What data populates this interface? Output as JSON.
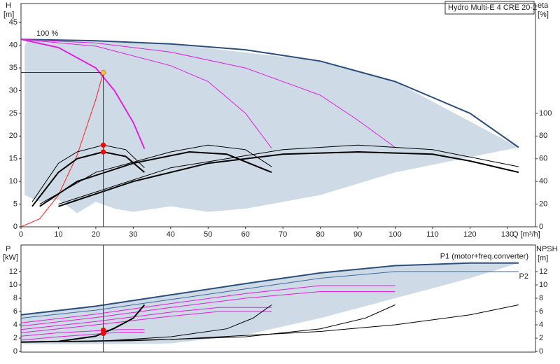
{
  "chart_data": [
    {
      "type": "line",
      "title": "Hydro Multi-E 4 CRE 20-2",
      "ylabel": "H",
      "yunit": "[m]",
      "y2label": "eta",
      "y2unit": "[%]",
      "xlabel": "Q [m³/h]",
      "annotations": [
        "100 %"
      ],
      "xlim": [
        0,
        137.5
      ],
      "ylim": [
        0,
        49.2
      ],
      "y2lim": [
        0,
        196.8
      ],
      "xticks": [
        0,
        10,
        20,
        30,
        40,
        50,
        60,
        70,
        80,
        90,
        100,
        110,
        120,
        130
      ],
      "yticks": [
        0,
        5,
        10,
        15,
        20,
        25,
        30,
        35,
        40,
        45
      ],
      "y2ticks": [
        0,
        20,
        40,
        60,
        80,
        100
      ],
      "series": [
        {
          "style": "area",
          "color": "#c9d6e3",
          "x": [
            1,
            2,
            10,
            40,
            80,
            100,
            133,
            100,
            80,
            60,
            50,
            40,
            30,
            25,
            20,
            15,
            10,
            5,
            1
          ],
          "values": [
            40,
            41.3,
            41.2,
            40.3,
            36.5,
            32,
            17.5,
            12,
            7,
            4,
            3.3,
            4.5,
            3.3,
            4,
            5.5,
            3,
            6,
            5.5,
            7
          ]
        },
        {
          "color": "#2b4f7a",
          "weight": "bold",
          "x": [
            0,
            20,
            40,
            60,
            80,
            100,
            120,
            133
          ],
          "values": [
            41.3,
            41,
            40.3,
            39,
            36.5,
            32,
            25,
            17.5
          ]
        },
        {
          "color": "#e020e0",
          "weight": "bold",
          "x": [
            0,
            10,
            20,
            25,
            30,
            33
          ],
          "values": [
            41.3,
            39.5,
            35,
            30,
            23,
            17.2
          ]
        },
        {
          "color": "#e020e0",
          "weight": "normal",
          "x": [
            0,
            20,
            40,
            50,
            60,
            67
          ],
          "values": [
            41.3,
            39.8,
            35.5,
            32,
            25,
            17.3
          ]
        },
        {
          "color": "#e020e0",
          "weight": "normal",
          "x": [
            0,
            20,
            40,
            60,
            80,
            90,
            100
          ],
          "values": [
            41.3,
            40.5,
            38.5,
            35,
            29,
            23.5,
            17.5
          ]
        },
        {
          "color": "#ff2020",
          "weight": "normal",
          "x": [
            0,
            5,
            10,
            15,
            20,
            22
          ],
          "values": [
            0,
            1.76,
            7,
            15.8,
            28.1,
            34
          ]
        },
        {
          "color": "#000000",
          "weight": "bold",
          "axis": "y2",
          "x": [
            3,
            10,
            15,
            22,
            28,
            33
          ],
          "values": [
            18,
            48,
            60,
            66,
            62,
            48
          ]
        },
        {
          "color": "#000000",
          "weight": "bold",
          "axis": "y2",
          "x": [
            5,
            15,
            30,
            45,
            55,
            67
          ],
          "values": [
            18,
            40,
            56,
            66,
            64,
            48
          ]
        },
        {
          "color": "#000000",
          "weight": "bold",
          "axis": "y2",
          "x": [
            10,
            30,
            50,
            70,
            90,
            110,
            120,
            133
          ],
          "values": [
            18,
            40,
            56,
            64,
            66,
            64,
            58,
            48
          ]
        },
        {
          "color": "#000000",
          "weight": "normal",
          "axis": "y2",
          "x": [
            3,
            10,
            15,
            22,
            28,
            33
          ],
          "values": [
            22,
            56,
            66,
            72,
            68,
            52
          ]
        },
        {
          "color": "#000000",
          "weight": "normal",
          "axis": "y2",
          "x": [
            5,
            20,
            40,
            50,
            60,
            67
          ],
          "values": [
            20,
            48,
            66,
            72,
            68,
            53
          ]
        },
        {
          "color": "#000000",
          "weight": "normal",
          "axis": "y2",
          "x": [
            10,
            40,
            70,
            90,
            110,
            133
          ],
          "values": [
            20,
            52,
            68,
            72,
            68,
            53
          ]
        }
      ],
      "points": [
        {
          "x": 22,
          "y": 34,
          "color": "#f5c242",
          "crosshair": true
        },
        {
          "x": 22,
          "y": 72,
          "axis": "y2",
          "color": "#ff0000"
        },
        {
          "x": 22,
          "y": 66,
          "axis": "y2",
          "color": "#ff0000"
        }
      ]
    },
    {
      "type": "line",
      "ylabel": "P",
      "yunit": "[kW]",
      "y2label": "NPSH",
      "y2unit": "[m]",
      "xlim": [
        0,
        137.5
      ],
      "ylim": [
        -0.1,
        16
      ],
      "y2lim": [
        -0.1,
        16
      ],
      "yticks": [
        0,
        2,
        4,
        6,
        8,
        10,
        12
      ],
      "y2ticks": [
        0,
        2,
        4,
        6,
        8,
        10,
        12
      ],
      "series": [
        {
          "style": "area",
          "color": "#c9d6e3",
          "x": [
            0,
            20,
            40,
            60,
            80,
            100,
            120,
            133,
            120,
            100,
            80,
            60,
            40,
            20,
            0
          ],
          "values": [
            5.5,
            6.8,
            8.5,
            10.2,
            11.8,
            12.9,
            13.3,
            13.3,
            11,
            8,
            5,
            2.5,
            1.2,
            1.1,
            1.1
          ]
        },
        {
          "name": "P1 (motor+freq.converter)",
          "color": "#2b4f7a",
          "weight": "bold",
          "x": [
            0,
            20,
            40,
            60,
            80,
            100,
            120,
            133
          ],
          "values": [
            5.5,
            6.8,
            8.5,
            10.2,
            11.8,
            12.9,
            13.3,
            13.3
          ]
        },
        {
          "name": "P2",
          "color": "#3a6aa0",
          "weight": "normal",
          "x": [
            0,
            20,
            40,
            60,
            80,
            100,
            120,
            133
          ],
          "values": [
            5,
            6.2,
            7.8,
            9.4,
            11,
            12,
            12,
            12
          ]
        },
        {
          "color": "#e020e0",
          "weight": "normal",
          "x": [
            0,
            20,
            40,
            60,
            80,
            100
          ],
          "values": [
            4.3,
            5.6,
            7.2,
            8.7,
            9.9,
            9.9
          ]
        },
        {
          "color": "#e020e0",
          "weight": "normal",
          "x": [
            0,
            20,
            40,
            60,
            80,
            100
          ],
          "values": [
            3.8,
            5.1,
            6.6,
            8,
            9,
            9
          ]
        },
        {
          "color": "#e020e0",
          "weight": "normal",
          "x": [
            0,
            20,
            40,
            53,
            67
          ],
          "values": [
            3.3,
            4.5,
            5.9,
            6.6,
            6.6
          ]
        },
        {
          "color": "#e020e0",
          "weight": "normal",
          "x": [
            0,
            20,
            40,
            53,
            67
          ],
          "values": [
            2.8,
            4,
            5.3,
            6,
            6
          ]
        },
        {
          "color": "#e020e0",
          "weight": "normal",
          "x": [
            0,
            10,
            20,
            27,
            33
          ],
          "values": [
            2.3,
            2.8,
            3.1,
            3.3,
            3.3
          ]
        },
        {
          "color": "#e020e0",
          "weight": "normal",
          "x": [
            0,
            10,
            20,
            27,
            33
          ],
          "values": [
            1.7,
            2.2,
            2.6,
            2.9,
            2.9
          ]
        },
        {
          "color": "#000000",
          "weight": "bold",
          "axis": "y2",
          "x": [
            0,
            10,
            20,
            25,
            30,
            33
          ],
          "values": [
            1.4,
            1.5,
            2.3,
            3.5,
            5,
            7
          ]
        },
        {
          "color": "#000000",
          "weight": "normal",
          "axis": "y2",
          "x": [
            0,
            20,
            40,
            55,
            62,
            67
          ],
          "values": [
            1.4,
            1.5,
            2.2,
            3.4,
            5,
            7
          ]
        },
        {
          "color": "#000000",
          "weight": "normal",
          "axis": "y2",
          "x": [
            0,
            30,
            60,
            80,
            92,
            100
          ],
          "values": [
            1.4,
            1.6,
            2.2,
            3.4,
            5,
            7
          ]
        },
        {
          "color": "#000000",
          "weight": "normal",
          "axis": "y2",
          "x": [
            0,
            40,
            80,
            100,
            120,
            133
          ],
          "values": [
            1.4,
            1.8,
            3,
            4,
            5.5,
            7
          ]
        }
      ],
      "points": [
        {
          "x": 22,
          "y": 3.2,
          "color": "#ff0000",
          "crosshair": true
        },
        {
          "x": 22,
          "y": 2.7,
          "color": "#ff0000"
        }
      ]
    }
  ]
}
